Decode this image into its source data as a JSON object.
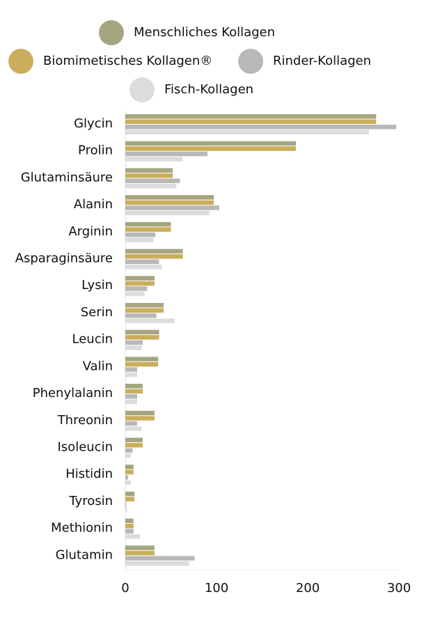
{
  "chart_data": {
    "type": "bar",
    "orientation": "horizontal",
    "categories": [
      "Glycin",
      "Prolin",
      "Glutaminsäure",
      "Alanin",
      "Arginin",
      "Asparaginsäure",
      "Lysin",
      "Serin",
      "Leucin",
      "Valin",
      "Phenylalanin",
      "Threonin",
      "Isoleucin",
      "Histidin",
      "Tyrosin",
      "Methionin",
      "Glutamin"
    ],
    "series": [
      {
        "name": "Menschliches Kollagen",
        "color": "#a5a67f",
        "values": [
          275,
          187,
          52,
          97,
          50,
          63,
          32,
          42,
          37,
          36,
          19,
          32,
          19,
          9,
          10,
          9,
          32
        ]
      },
      {
        "name": "Biomimetisches Kollagen®",
        "color": "#cbae5b",
        "values": [
          275,
          187,
          52,
          97,
          50,
          63,
          32,
          42,
          37,
          36,
          19,
          32,
          19,
          9,
          10,
          9,
          32
        ]
      },
      {
        "name": "Rinder-Kollagen",
        "color": "#b8b8b8",
        "values": [
          297,
          90,
          60,
          103,
          33,
          37,
          24,
          34,
          19,
          13,
          13,
          13,
          8,
          3,
          1,
          9,
          76
        ]
      },
      {
        "name": "Fisch-Kollagen",
        "color": "#dcdcdc",
        "values": [
          267,
          63,
          56,
          92,
          31,
          40,
          21,
          54,
          18,
          13,
          13,
          18,
          6,
          6,
          2,
          16,
          70
        ]
      }
    ],
    "xlim": [
      0,
      300
    ],
    "xticks": [
      0,
      100,
      200,
      300
    ],
    "grid": false
  }
}
